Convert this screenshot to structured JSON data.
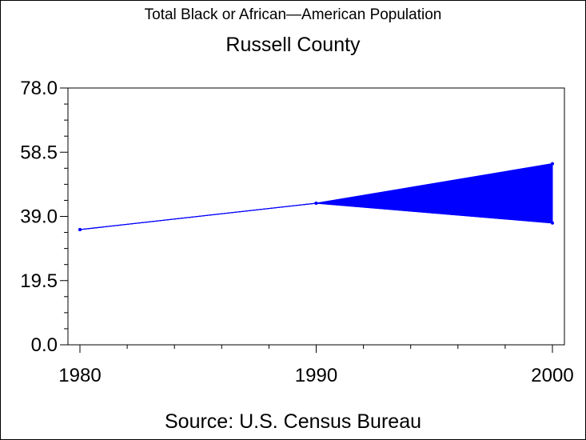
{
  "chart_data": {
    "type": "area",
    "title": "Total Black or African—American Population",
    "subtitle": "Russell County",
    "footnote": "Source: U.S. Census Bureau",
    "xlabel": "",
    "ylabel": "",
    "x_ticks": [
      "1980",
      "1990",
      "2000"
    ],
    "y_ticks": [
      "0.0",
      "19.5",
      "39.0",
      "58.5",
      "78.0"
    ],
    "xlim": [
      1980,
      2000
    ],
    "ylim": [
      0,
      78
    ],
    "series": [
      {
        "x": [
          1980,
          1990,
          2000
        ],
        "values": [
          35,
          43,
          55
        ],
        "lower": [
          35,
          43,
          37
        ]
      }
    ],
    "grid": false,
    "colors": {
      "series": "#0000ff",
      "axis": "#000000"
    }
  }
}
